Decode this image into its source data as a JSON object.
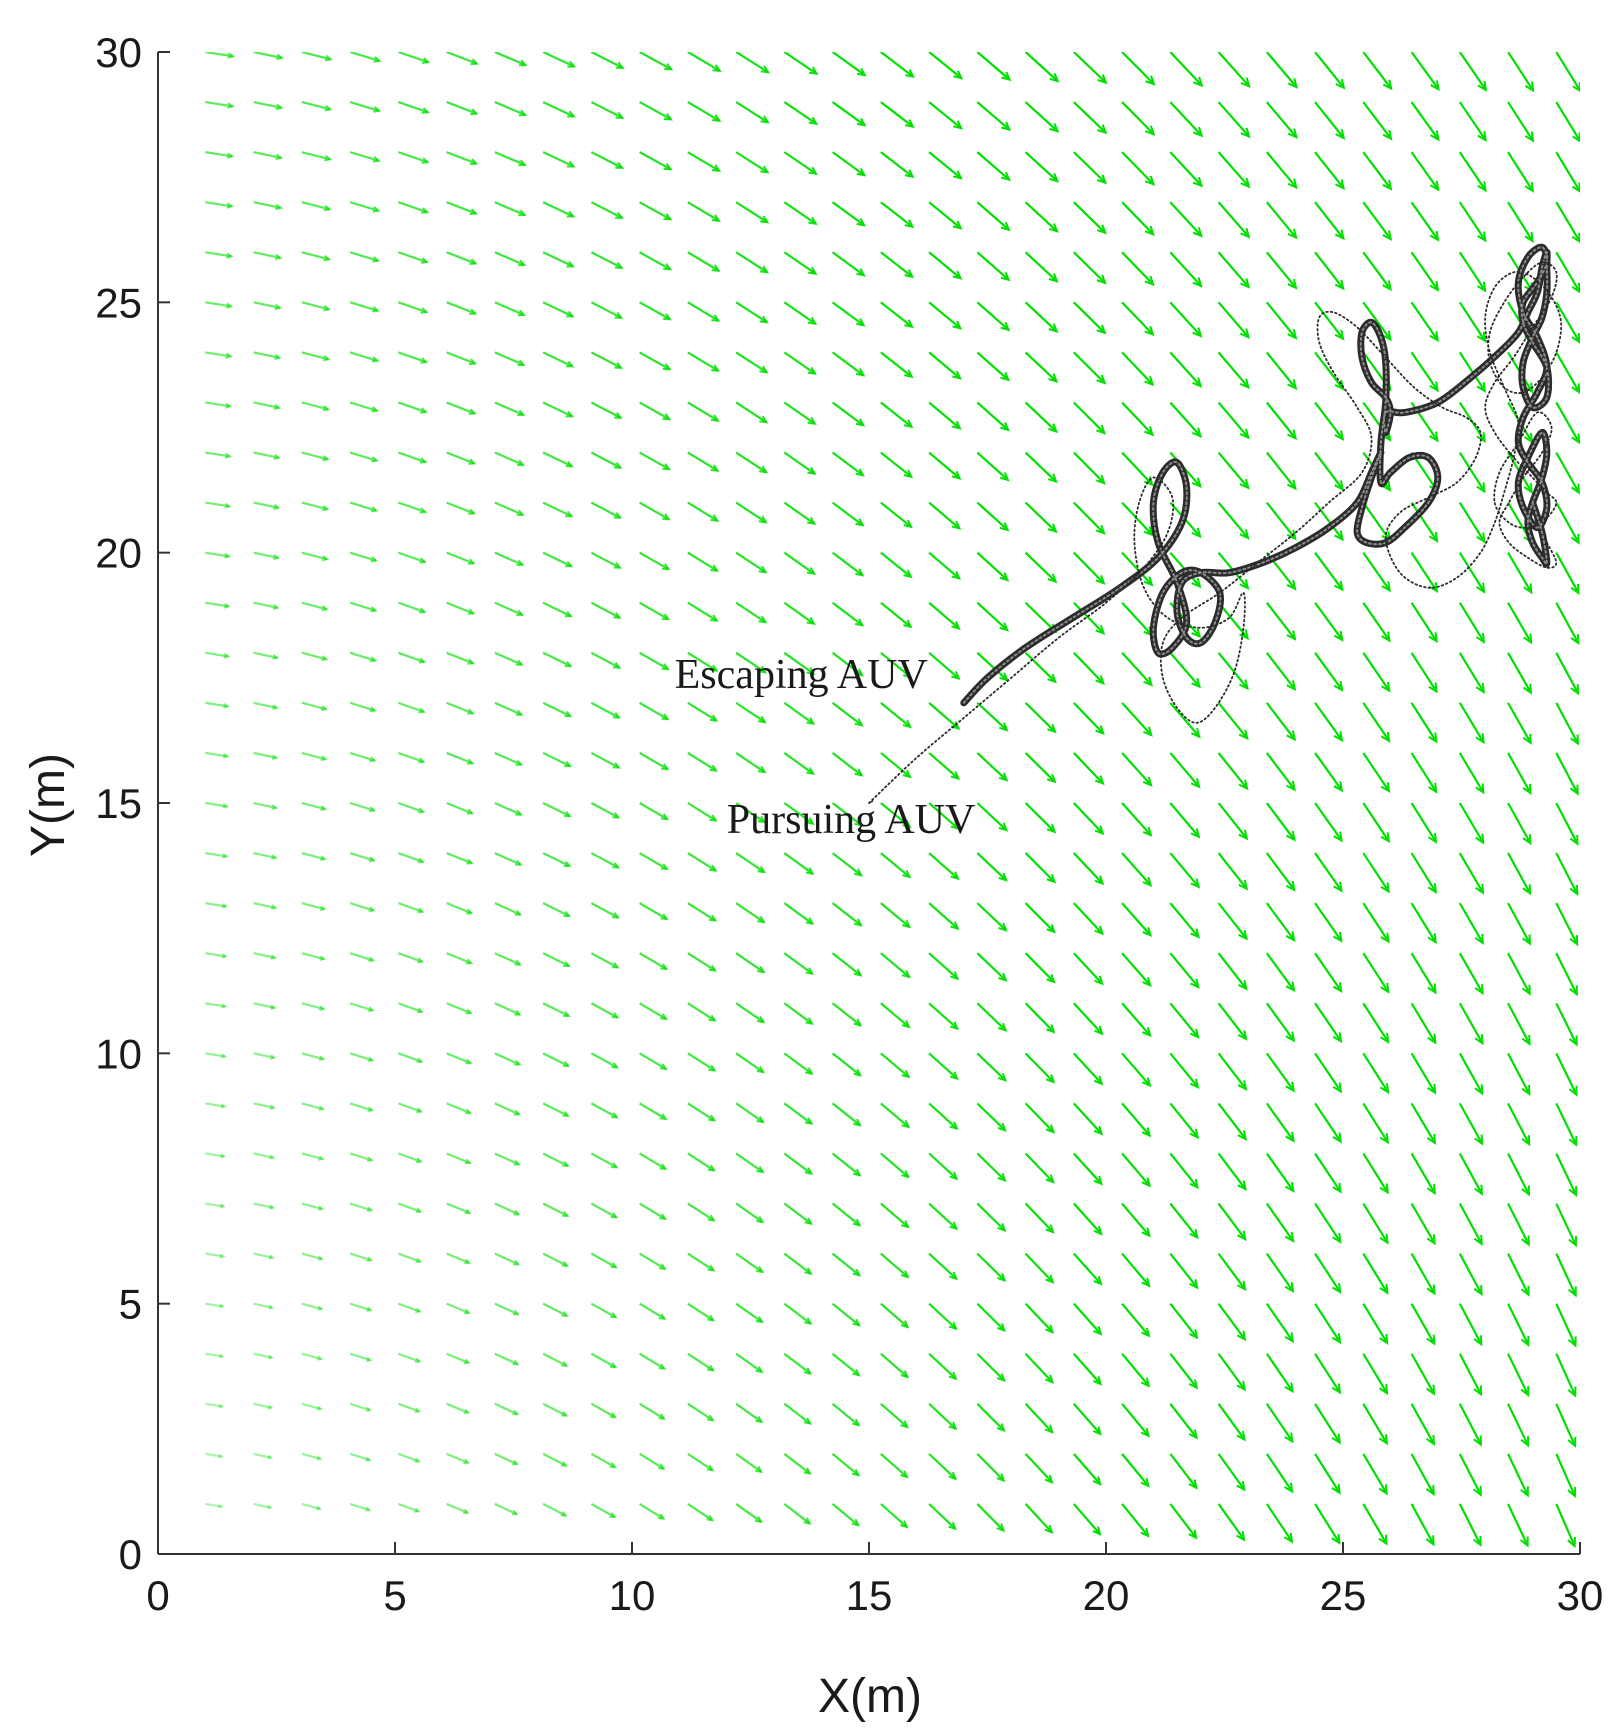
{
  "chart_data": {
    "type": "scatter",
    "title": "",
    "xlabel": "X(m)",
    "ylabel": "Y(m)",
    "xlim": [
      0,
      30
    ],
    "ylim": [
      0,
      30
    ],
    "xticks": [
      0,
      5,
      10,
      15,
      20,
      25,
      30
    ],
    "yticks": [
      0,
      5,
      10,
      15,
      20,
      25,
      30
    ],
    "grid": false,
    "legend": "none",
    "annotations": [
      {
        "text": "Escaping AUV",
        "x": 10.9,
        "y": 17.3
      },
      {
        "text": "Pursuing AUV",
        "x": 12.0,
        "y": 14.4
      }
    ],
    "vector_field": {
      "description": "current flow arrows",
      "color": "#00e000",
      "x_start": 1,
      "x_end": 29.5,
      "x_count": 29,
      "y_start": 1,
      "y_end": 30,
      "y_count": 30
    },
    "series": [
      {
        "name": "Escaping AUV",
        "style": "thick-line",
        "color": "#2b2b2b",
        "x": [
          17.0,
          17.5,
          18.3,
          19.3,
          20.3,
          21.1,
          21.6,
          21.7,
          21.5,
          21.2,
          21.0,
          21.1,
          21.5,
          21.7,
          21.4,
          21.1,
          21.0,
          21.2,
          21.6,
          22.0,
          22.4,
          22.3,
          22.0,
          21.7,
          21.5,
          21.6,
          22.0,
          22.6,
          23.3,
          24.0,
          24.7,
          25.3,
          25.6,
          25.8,
          25.6,
          25.4,
          25.3,
          25.5,
          25.9,
          26.3,
          26.8,
          27.0,
          26.8,
          26.4,
          26.0,
          25.8,
          25.8,
          25.9,
          25.9,
          25.8,
          25.6,
          25.4,
          25.4,
          25.6,
          25.9,
          26.0,
          25.9,
          25.9,
          26.3,
          27.0,
          27.7,
          28.3,
          28.7,
          28.9,
          29.1,
          29.2,
          29.3,
          29.3,
          29.3,
          29.2,
          29.0,
          28.8,
          28.8,
          29.0,
          29.3,
          29.3,
          29.0,
          28.8,
          28.8,
          29.1,
          29.3,
          29.2,
          28.9,
          28.7,
          28.8,
          29.1,
          29.3,
          29.1,
          28.8,
          28.7,
          28.9,
          29.2,
          29.3,
          29.1,
          28.8,
          28.7,
          28.9,
          29.2,
          29.3,
          29.2,
          29.0,
          28.9,
          29.0,
          29.2,
          29.3,
          29.2,
          29.0
        ],
        "y": [
          17.0,
          17.5,
          18.1,
          18.7,
          19.3,
          19.9,
          20.6,
          21.3,
          21.8,
          21.6,
          21.0,
          20.2,
          19.4,
          18.6,
          18.1,
          18.0,
          18.5,
          19.2,
          19.6,
          19.6,
          19.2,
          18.6,
          18.2,
          18.3,
          18.8,
          19.4,
          19.6,
          19.6,
          19.8,
          20.1,
          20.5,
          21.0,
          21.6,
          22.0,
          21.5,
          20.9,
          20.4,
          20.2,
          20.2,
          20.5,
          21.0,
          21.5,
          21.9,
          21.9,
          21.6,
          21.4,
          22.2,
          23.0,
          23.8,
          24.3,
          24.6,
          24.4,
          23.9,
          23.4,
          23.1,
          22.8,
          22.4,
          22.8,
          22.8,
          23.0,
          23.5,
          24.0,
          24.4,
          24.8,
          25.2,
          25.7,
          26.0,
          25.7,
          25.2,
          24.7,
          24.3,
          23.8,
          23.3,
          22.9,
          23.1,
          23.7,
          24.2,
          24.6,
          25.0,
          25.4,
          25.8,
          26.1,
          25.9,
          25.4,
          24.8,
          24.3,
          23.7,
          23.2,
          22.7,
          22.2,
          21.8,
          21.4,
          20.9,
          20.5,
          20.9,
          21.4,
          21.9,
          22.4,
          22.0,
          21.5,
          21.0,
          20.6,
          20.2,
          19.9,
          19.8,
          20.4,
          21.0
        ]
      },
      {
        "name": "Pursuing AUV",
        "style": "dotted-line",
        "color": "#2b2b2b",
        "x": [
          15.0,
          16.0,
          17.0,
          18.0,
          19.0,
          20.0,
          20.8,
          21.3,
          21.4,
          21.0,
          20.7,
          20.6,
          20.8,
          21.3,
          22.0,
          22.6,
          22.9,
          22.9,
          22.7,
          22.3,
          21.9,
          21.5,
          21.2,
          21.2,
          21.6,
          22.4,
          23.2,
          24.0,
          24.7,
          25.4,
          25.6,
          25.3,
          24.8,
          24.5,
          24.5,
          24.8,
          25.3,
          25.9,
          26.5,
          27.1,
          27.6,
          27.9,
          27.8,
          27.4,
          26.8,
          26.2,
          25.9,
          26.2,
          26.8,
          27.4,
          27.9,
          28.2,
          28.4,
          28.6,
          28.7,
          28.4,
          28.1,
          28.0,
          28.2,
          28.6,
          29.0,
          29.4,
          29.6,
          29.5,
          29.2,
          28.8,
          28.4,
          28.1,
          28.1,
          28.4,
          28.8,
          29.2,
          29.5,
          29.4,
          29.0,
          28.6,
          28.2,
          28.0,
          28.2,
          28.6,
          29.0,
          29.3,
          29.5,
          29.3,
          28.9,
          28.5,
          28.2,
          28.3,
          28.7,
          29.1,
          29.4,
          29.2,
          28.8,
          28.5,
          28.3,
          28.5,
          28.9,
          29.3,
          29.5,
          29.3
        ],
        "y": [
          15.0,
          15.9,
          16.7,
          17.5,
          18.3,
          19.0,
          19.7,
          20.4,
          21.1,
          21.5,
          21.0,
          20.2,
          19.3,
          18.7,
          18.5,
          18.7,
          19.2,
          18.5,
          17.6,
          16.9,
          16.6,
          16.9,
          17.5,
          18.2,
          18.7,
          19.2,
          19.8,
          20.4,
          21.0,
          21.6,
          22.3,
          22.9,
          23.6,
          24.2,
          24.7,
          24.8,
          24.5,
          23.9,
          23.3,
          22.9,
          22.7,
          22.4,
          21.9,
          21.4,
          21.1,
          20.8,
          20.3,
          19.6,
          19.3,
          19.5,
          20.0,
          20.6,
          21.2,
          21.9,
          22.6,
          23.3,
          24.0,
          24.7,
          25.3,
          25.6,
          25.5,
          25.1,
          24.6,
          24.0,
          23.5,
          23.2,
          23.3,
          23.8,
          24.4,
          25.0,
          25.5,
          25.8,
          25.6,
          25.1,
          24.5,
          23.9,
          23.4,
          22.9,
          22.4,
          21.9,
          21.5,
          21.2,
          21.0,
          20.7,
          20.5,
          20.6,
          21.0,
          21.6,
          22.2,
          22.8,
          22.5,
          22.0,
          21.5,
          21.0,
          20.6,
          20.2,
          19.9,
          19.7,
          19.8,
          20.2
        ]
      }
    ]
  }
}
